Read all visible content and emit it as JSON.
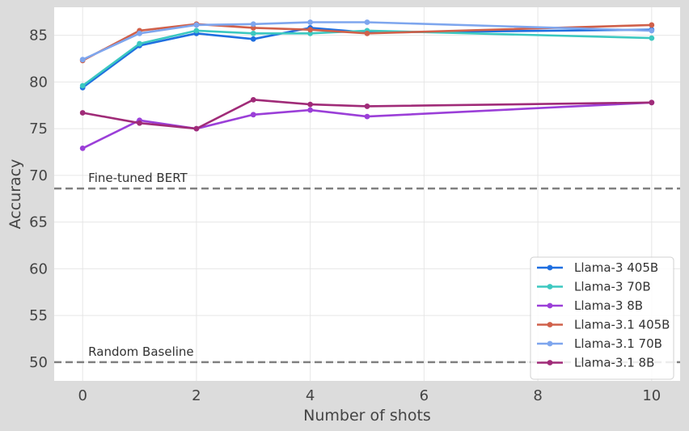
{
  "chart_data": {
    "type": "line",
    "xlabel": "Number of shots",
    "ylabel": "Accuracy",
    "xlim": [
      -0.5,
      10.5
    ],
    "ylim": [
      48,
      88
    ],
    "xticks": [
      0,
      2,
      4,
      6,
      8,
      10
    ],
    "yticks": [
      50,
      55,
      60,
      65,
      70,
      75,
      80,
      85
    ],
    "grid": true,
    "legend_position": "bottom-right",
    "x": [
      0,
      1,
      2,
      3,
      4,
      5,
      10
    ],
    "series": [
      {
        "name": "Llama-3 405B",
        "color": "#1f6fe0",
        "values": [
          79.4,
          83.9,
          85.2,
          84.6,
          85.8,
          85.3,
          85.6
        ]
      },
      {
        "name": "Llama-3 70B",
        "color": "#3cc8c0",
        "values": [
          79.6,
          84.1,
          85.5,
          85.2,
          85.2,
          85.5,
          84.7
        ]
      },
      {
        "name": "Llama-3 8B",
        "color": "#9b3fd8",
        "values": [
          72.9,
          75.9,
          75.0,
          76.5,
          77.0,
          76.3,
          77.8
        ]
      },
      {
        "name": "Llama-3.1 405B",
        "color": "#d0604a",
        "values": [
          82.3,
          85.5,
          86.2,
          85.8,
          85.6,
          85.2,
          86.1
        ]
      },
      {
        "name": "Llama-3.1 70B",
        "color": "#7ea6ee",
        "values": [
          82.4,
          85.2,
          86.1,
          86.2,
          86.4,
          86.4,
          85.5
        ]
      },
      {
        "name": "Llama-3.1 8B",
        "color": "#a02b78",
        "values": [
          76.7,
          75.6,
          75.0,
          78.1,
          77.6,
          77.4,
          77.8
        ]
      }
    ],
    "reference_lines": [
      {
        "label": "Fine-tuned BERT",
        "value": 68.6,
        "color": "#808080"
      },
      {
        "label": "Random Baseline",
        "value": 50.0,
        "color": "#808080"
      }
    ]
  }
}
